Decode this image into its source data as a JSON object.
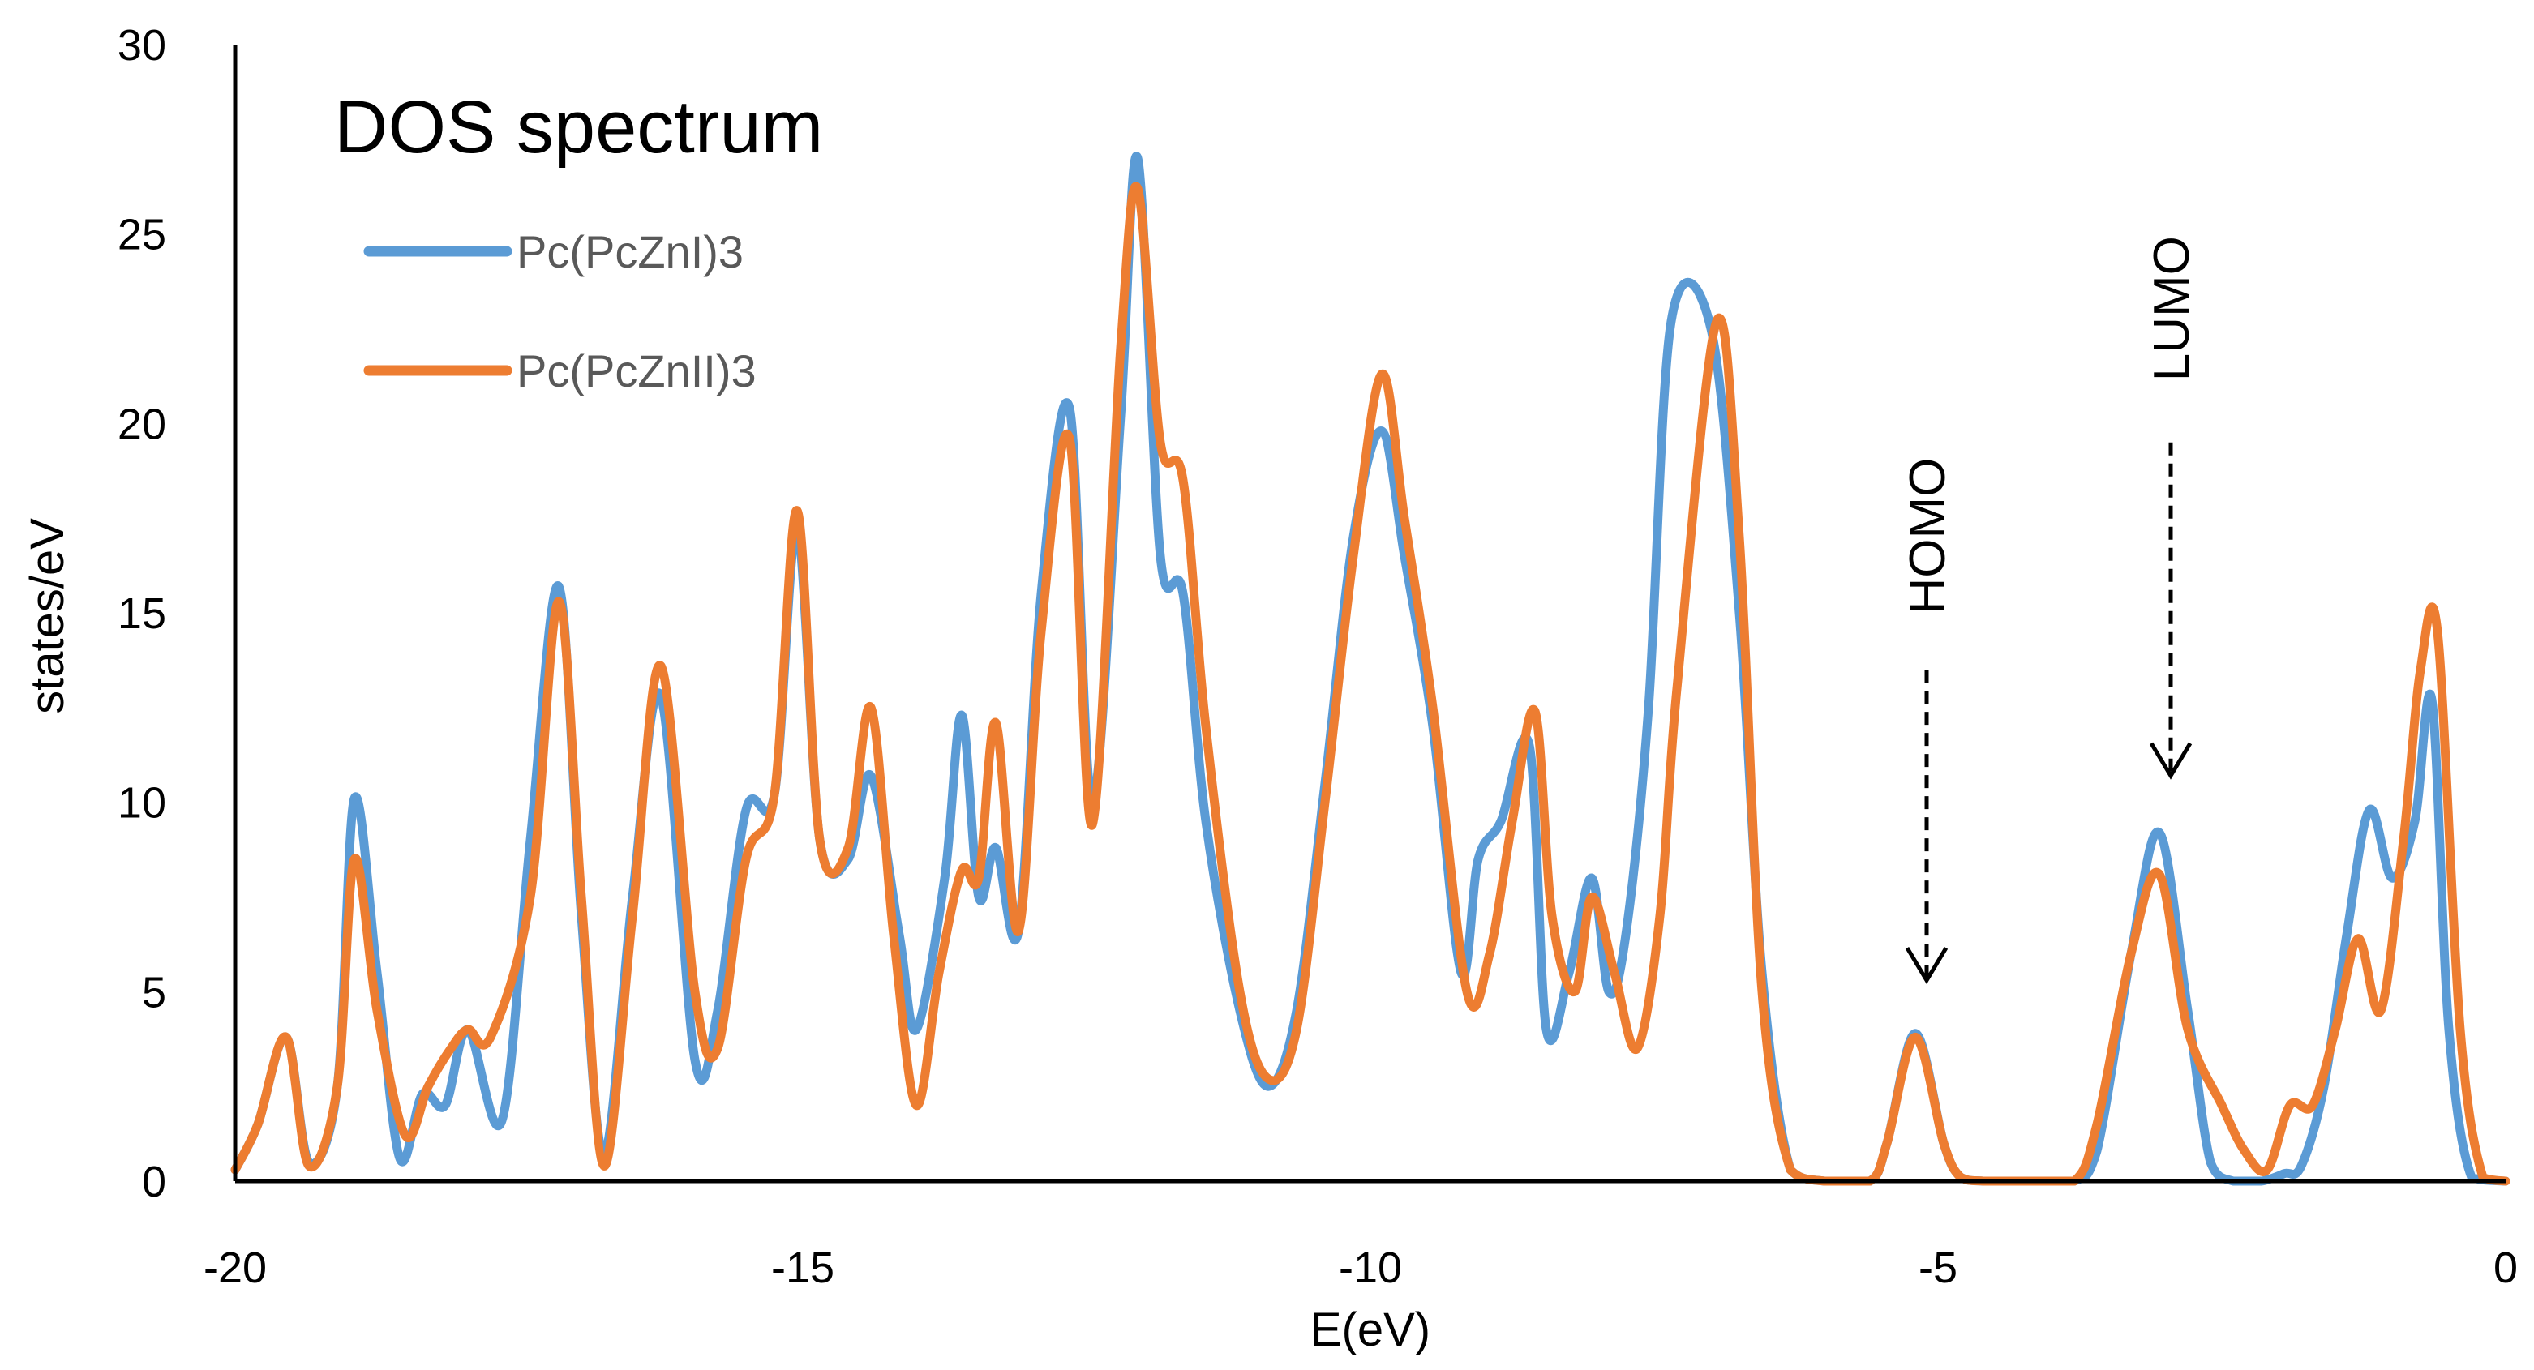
{
  "chart_data": {
    "type": "line",
    "title": "DOS spectrum",
    "xlabel": "E(eV)",
    "ylabel": "states/eV",
    "xlim": [
      -20,
      0
    ],
    "ylim": [
      0,
      30
    ],
    "xticks": [
      -20,
      -15,
      -10,
      -5,
      0
    ],
    "yticks": [
      0,
      5,
      10,
      15,
      20,
      25,
      30
    ],
    "xtick_labels": [
      "-20",
      "-15",
      "-10",
      "-5",
      "0"
    ],
    "ytick_labels": [
      "0",
      "5",
      "10",
      "15",
      "20",
      "25",
      "30"
    ],
    "grid": false,
    "legend_position": "top-left",
    "series": [
      {
        "name": "Pc(PcZnI)3",
        "color": "#5B9BD5",
        "x": [
          -20,
          -19.8,
          -19.55,
          -19.35,
          -19.1,
          -18.95,
          -18.75,
          -18.55,
          -18.35,
          -18.15,
          -17.95,
          -17.65,
          -17.4,
          -17.15,
          -16.95,
          -16.75,
          -16.5,
          -16.25,
          -15.95,
          -15.75,
          -15.5,
          -15.25,
          -15.05,
          -14.85,
          -14.6,
          -14.4,
          -14.15,
          -14.0,
          -13.75,
          -13.6,
          -13.45,
          -13.3,
          -13.1,
          -12.9,
          -12.65,
          -12.45,
          -12.2,
          -12.05,
          -11.85,
          -11.65,
          -11.45,
          -11.15,
          -10.9,
          -10.65,
          -10.4,
          -10.15,
          -9.9,
          -9.7,
          -9.45,
          -9.2,
          -9.05,
          -8.85,
          -8.6,
          -8.45,
          -8.25,
          -8.05,
          -7.9,
          -7.75,
          -7.55,
          -7.35,
          -7.0,
          -6.75,
          -6.55,
          -6.3,
          -6.0,
          -5.6,
          -5.45,
          -5.2,
          -4.95,
          -4.8,
          -4.6,
          -4.2,
          -3.8,
          -3.6,
          -3.3,
          -3.05,
          -2.8,
          -2.6,
          -2.4,
          -2.15,
          -1.95,
          -1.8,
          -1.6,
          -1.4,
          -1.2,
          -1.0,
          -0.8,
          -0.65,
          -0.5,
          -0.3,
          0
        ],
        "y": [
          0.3,
          1.5,
          3.8,
          0.5,
          2.5,
          10.1,
          5.5,
          0.6,
          2.3,
          2.0,
          4.0,
          1.6,
          9.0,
          15.7,
          7.0,
          0.7,
          7.5,
          12.8,
          3.2,
          4.5,
          9.8,
          10.2,
          17.2,
          9.0,
          8.5,
          10.7,
          6.5,
          4.0,
          8.0,
          12.3,
          7.5,
          8.8,
          6.6,
          15.5,
          20.4,
          10.0,
          20.2,
          27.0,
          16.5,
          15.5,
          9.5,
          4.5,
          2.5,
          4.5,
          10.5,
          17.0,
          19.8,
          16.5,
          12.0,
          5.5,
          8.5,
          9.5,
          11.5,
          4.0,
          5.5,
          8.0,
          5.0,
          6.5,
          12.5,
          22.7,
          22.5,
          15.0,
          5.5,
          0.3,
          0.0,
          0.0,
          1.0,
          3.9,
          1.0,
          0.1,
          0.0,
          0.0,
          0.0,
          0.8,
          6.0,
          9.2,
          4.5,
          0.5,
          0.0,
          0.0,
          0.2,
          0.4,
          2.5,
          6.5,
          9.8,
          8.0,
          9.5,
          12.7,
          4.0,
          0.1,
          0.0
        ]
      },
      {
        "name": "Pc(PcZnII)3",
        "color": "#ED7D31",
        "x": [
          -20,
          -19.8,
          -19.55,
          -19.35,
          -19.1,
          -18.95,
          -18.75,
          -18.5,
          -18.3,
          -18.1,
          -17.95,
          -17.75,
          -17.4,
          -17.15,
          -16.95,
          -16.75,
          -16.5,
          -16.25,
          -15.95,
          -15.75,
          -15.5,
          -15.25,
          -15.05,
          -14.85,
          -14.6,
          -14.4,
          -14.2,
          -14.0,
          -13.8,
          -13.6,
          -13.45,
          -13.3,
          -13.1,
          -12.9,
          -12.65,
          -12.45,
          -12.2,
          -12.05,
          -11.85,
          -11.65,
          -11.45,
          -11.15,
          -10.9,
          -10.65,
          -10.4,
          -10.15,
          -9.9,
          -9.7,
          -9.45,
          -9.15,
          -8.95,
          -8.75,
          -8.55,
          -8.4,
          -8.2,
          -8.05,
          -7.85,
          -7.65,
          -7.45,
          -7.3,
          -6.95,
          -6.75,
          -6.55,
          -6.3,
          -6.0,
          -5.6,
          -5.45,
          -5.2,
          -4.95,
          -4.8,
          -4.6,
          -4.2,
          -3.8,
          -3.6,
          -3.3,
          -3.05,
          -2.8,
          -2.5,
          -2.3,
          -2.1,
          -1.9,
          -1.7,
          -1.5,
          -1.3,
          -1.1,
          -0.9,
          -0.75,
          -0.6,
          -0.4,
          -0.2,
          0
        ],
        "y": [
          0.3,
          1.5,
          3.8,
          0.4,
          2.5,
          8.5,
          4.5,
          1.2,
          2.5,
          3.5,
          4.0,
          3.8,
          7.5,
          15.3,
          7.5,
          0.4,
          7.0,
          13.6,
          5.0,
          3.5,
          8.5,
          10.2,
          17.7,
          9.0,
          8.8,
          12.5,
          6.5,
          2.0,
          5.5,
          8.2,
          8.0,
          12.1,
          6.6,
          14.5,
          19.6,
          9.4,
          22.0,
          26.2,
          19.5,
          18.5,
          12.0,
          5.0,
          2.7,
          4.0,
          10.0,
          16.5,
          21.3,
          17.5,
          12.5,
          5.0,
          6.0,
          9.5,
          12.4,
          7.0,
          5.0,
          7.5,
          5.5,
          3.5,
          7.0,
          13.0,
          22.7,
          17.0,
          5.0,
          0.3,
          0.0,
          0.0,
          1.0,
          3.8,
          1.0,
          0.1,
          0.0,
          0.0,
          0.0,
          1.5,
          6.0,
          8.1,
          4.0,
          2.0,
          0.8,
          0.3,
          2.0,
          2.0,
          4.0,
          6.4,
          4.5,
          9.0,
          13.5,
          14.5,
          4.0,
          0.1,
          0.0
        ]
      }
    ],
    "annotations": [
      {
        "name": "homo",
        "text": "HOMO",
        "x": -5.1,
        "arrow_from_y": 13.5,
        "arrow_to_y": 5.3
      },
      {
        "name": "lumo",
        "text": "LUMO",
        "x": -2.95,
        "arrow_from_y": 19.5,
        "arrow_to_y": 10.7
      }
    ]
  }
}
